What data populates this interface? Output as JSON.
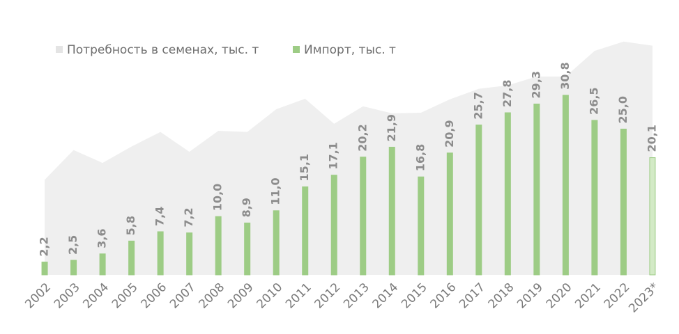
{
  "chart_data": {
    "type": "combo",
    "categories": [
      "2002",
      "2003",
      "2004",
      "2005",
      "2006",
      "2007",
      "2008",
      "2009",
      "2010",
      "2011",
      "2012",
      "2013",
      "2014",
      "2015",
      "2016",
      "2017",
      "2018",
      "2019",
      "2020",
      "2021",
      "2022",
      "2023*"
    ],
    "series": [
      {
        "name": "Потребность в семенах, тыс. т",
        "type": "area",
        "color": "#efefef",
        "values": [
          16.3,
          21.4,
          19.2,
          22,
          24.5,
          21.1,
          24.7,
          24.5,
          28.4,
          30.2,
          25.9,
          28.9,
          27.7,
          27.8,
          30.1,
          31.9,
          32.5,
          34,
          34,
          38.4,
          40,
          39.3
        ]
      },
      {
        "name": "Импорт, тыс. т",
        "type": "bar",
        "color": "#9dcc85",
        "colors": [
          "#9dcc85",
          "#9dcc85",
          "#9dcc85",
          "#9dcc85",
          "#9dcc85",
          "#9dcc85",
          "#9dcc85",
          "#9dcc85",
          "#9dcc85",
          "#9dcc85",
          "#9dcc85",
          "#9dcc85",
          "#9dcc85",
          "#9dcc85",
          "#9dcc85",
          "#9dcc85",
          "#9dcc85",
          "#9dcc85",
          "#9dcc85",
          "#9dcc85",
          "#9dcc85",
          "#d3eac6"
        ],
        "values": [
          2.2,
          2.5,
          3.6,
          5.8,
          7.4,
          7.2,
          10.0,
          8.9,
          11.0,
          15.1,
          17.1,
          20.2,
          21.9,
          16.8,
          20.9,
          25.7,
          27.8,
          29.3,
          30.8,
          26.5,
          25.0,
          20.1
        ],
        "value_labels": [
          "2,2",
          "2,5",
          "3,6",
          "5,8",
          "7,4",
          "7,2",
          "10,0",
          "8,9",
          "11,0",
          "15,1",
          "17,1",
          "20,2",
          "21,9",
          "16,8",
          "20,9",
          "25,7",
          "27,8",
          "29,3",
          "30,8",
          "26,5",
          "25,0",
          "20,1"
        ]
      }
    ],
    "ylim": [
      0,
      42
    ]
  }
}
